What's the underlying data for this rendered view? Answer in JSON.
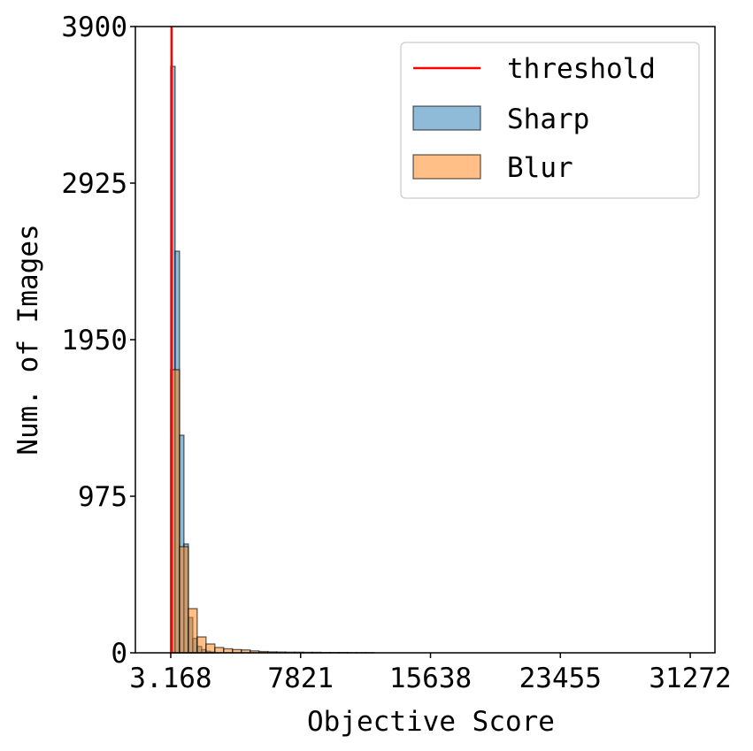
{
  "chart_data": {
    "type": "histogram",
    "xlabel": "Objective Score",
    "ylabel": "Num. of Images",
    "xlim": [
      -2125,
      32760
    ],
    "ylim": [
      0,
      3900
    ],
    "xticks": [
      3.168,
      7821,
      15638,
      23455,
      31272
    ],
    "yticks": [
      0,
      975,
      1950,
      2925,
      3900
    ],
    "legend": "upper right",
    "threshold": {
      "name": "threshold",
      "value": 50,
      "color": "#ff0000"
    },
    "series": [
      {
        "name": "Sharp",
        "color": "#1f77b4",
        "bins": [
          0,
          266,
          532,
          798,
          1064,
          1330,
          1596,
          1862,
          2128,
          2394,
          2660
        ],
        "values": [
          3652,
          2501,
          1355,
          678,
          220,
          90,
          40,
          20,
          10,
          5
        ]
      },
      {
        "name": "Blur",
        "color": "#ff7f0e",
        "bins": [
          0,
          532,
          1064,
          1596,
          2128,
          2660,
          3192,
          3724,
          4256,
          4788,
          5320,
          5852,
          6384,
          6916,
          7448,
          7980,
          8512,
          9044,
          9576,
          10108,
          10640,
          11172,
          11704,
          12236
        ],
        "values": [
          1763,
          661,
          275,
          99,
          55,
          33,
          25,
          20,
          18,
          12,
          8,
          6,
          5,
          4,
          4,
          3,
          3,
          2,
          2,
          2,
          1,
          1,
          1
        ]
      }
    ]
  }
}
